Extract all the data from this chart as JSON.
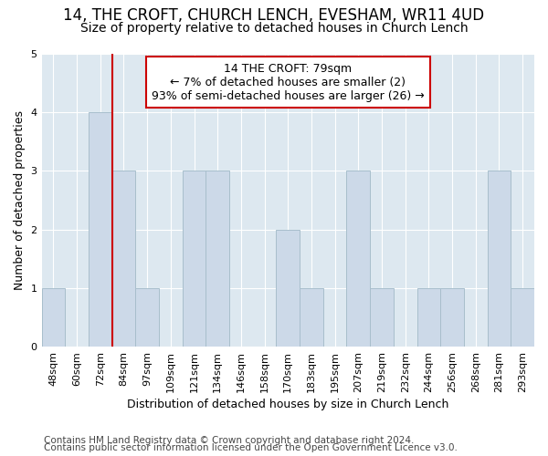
{
  "title_line1": "14, THE CROFT, CHURCH LENCH, EVESHAM, WR11 4UD",
  "title_line2": "Size of property relative to detached houses in Church Lench",
  "xlabel": "Distribution of detached houses by size in Church Lench",
  "ylabel": "Number of detached properties",
  "categories": [
    "48sqm",
    "60sqm",
    "72sqm",
    "84sqm",
    "97sqm",
    "109sqm",
    "121sqm",
    "134sqm",
    "146sqm",
    "158sqm",
    "170sqm",
    "183sqm",
    "195sqm",
    "207sqm",
    "219sqm",
    "232sqm",
    "244sqm",
    "256sqm",
    "268sqm",
    "281sqm",
    "293sqm"
  ],
  "values": [
    1,
    0,
    4,
    3,
    1,
    0,
    3,
    3,
    0,
    0,
    2,
    1,
    0,
    3,
    1,
    0,
    1,
    1,
    0,
    3,
    1
  ],
  "bar_color": "#ccd9e8",
  "bar_edgecolor": "#a8becc",
  "highlight_line_color": "#cc0000",
  "highlight_bar_index": 2,
  "annotation_text": "14 THE CROFT: 79sqm\n← 7% of detached houses are smaller (2)\n93% of semi-detached houses are larger (26) →",
  "annotation_box_edgecolor": "#cc0000",
  "annotation_box_facecolor": "#ffffff",
  "ylim": [
    0,
    5
  ],
  "yticks": [
    0,
    1,
    2,
    3,
    4,
    5
  ],
  "footer_line1": "Contains HM Land Registry data © Crown copyright and database right 2024.",
  "footer_line2": "Contains public sector information licensed under the Open Government Licence v3.0.",
  "bg_color": "#ffffff",
  "plot_bg_color": "#dde8f0",
  "title_fontsize": 12,
  "subtitle_fontsize": 10,
  "axis_label_fontsize": 9,
  "tick_fontsize": 8,
  "annotation_fontsize": 9,
  "footer_fontsize": 7.5
}
